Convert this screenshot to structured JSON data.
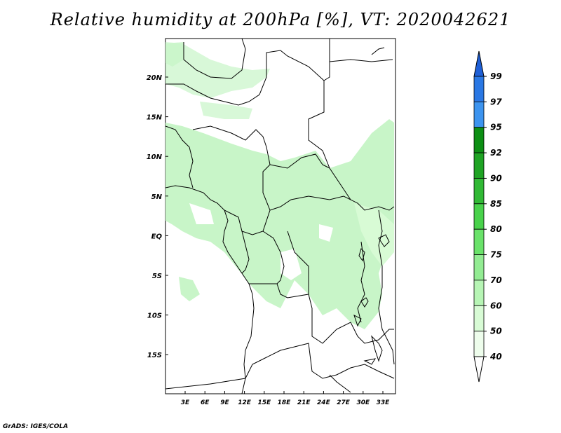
{
  "title": "Relative humidity at 200hPa [%], VT: 2020042621",
  "footer": "GrADS: IGES/COLA",
  "colors": {
    "land_border": "#000000",
    "map_background": "#ffffff",
    "light_green_shade": "#c8f5c8"
  },
  "map": {
    "lat_labels": [
      "20N",
      "15N",
      "10N",
      "5N",
      "EQ",
      "5S",
      "10S",
      "15S"
    ],
    "lon_labels": [
      "3E",
      "6E",
      "9E",
      "12E",
      "15E",
      "18E",
      "21E",
      "24E",
      "27E",
      "30E",
      "33E"
    ]
  },
  "colorbar": {
    "levels": [
      "99",
      "97",
      "95",
      "92",
      "90",
      "85",
      "80",
      "75",
      "70",
      "60",
      "50",
      "40"
    ],
    "colors": [
      "#1e5fd6",
      "#2a78e4",
      "#3d94ef",
      "#0d8f14",
      "#1fa424",
      "#31b935",
      "#49d24b",
      "#6ae26a",
      "#93ec93",
      "#b7f5b5",
      "#d8fbd5",
      "#eefdec"
    ]
  }
}
